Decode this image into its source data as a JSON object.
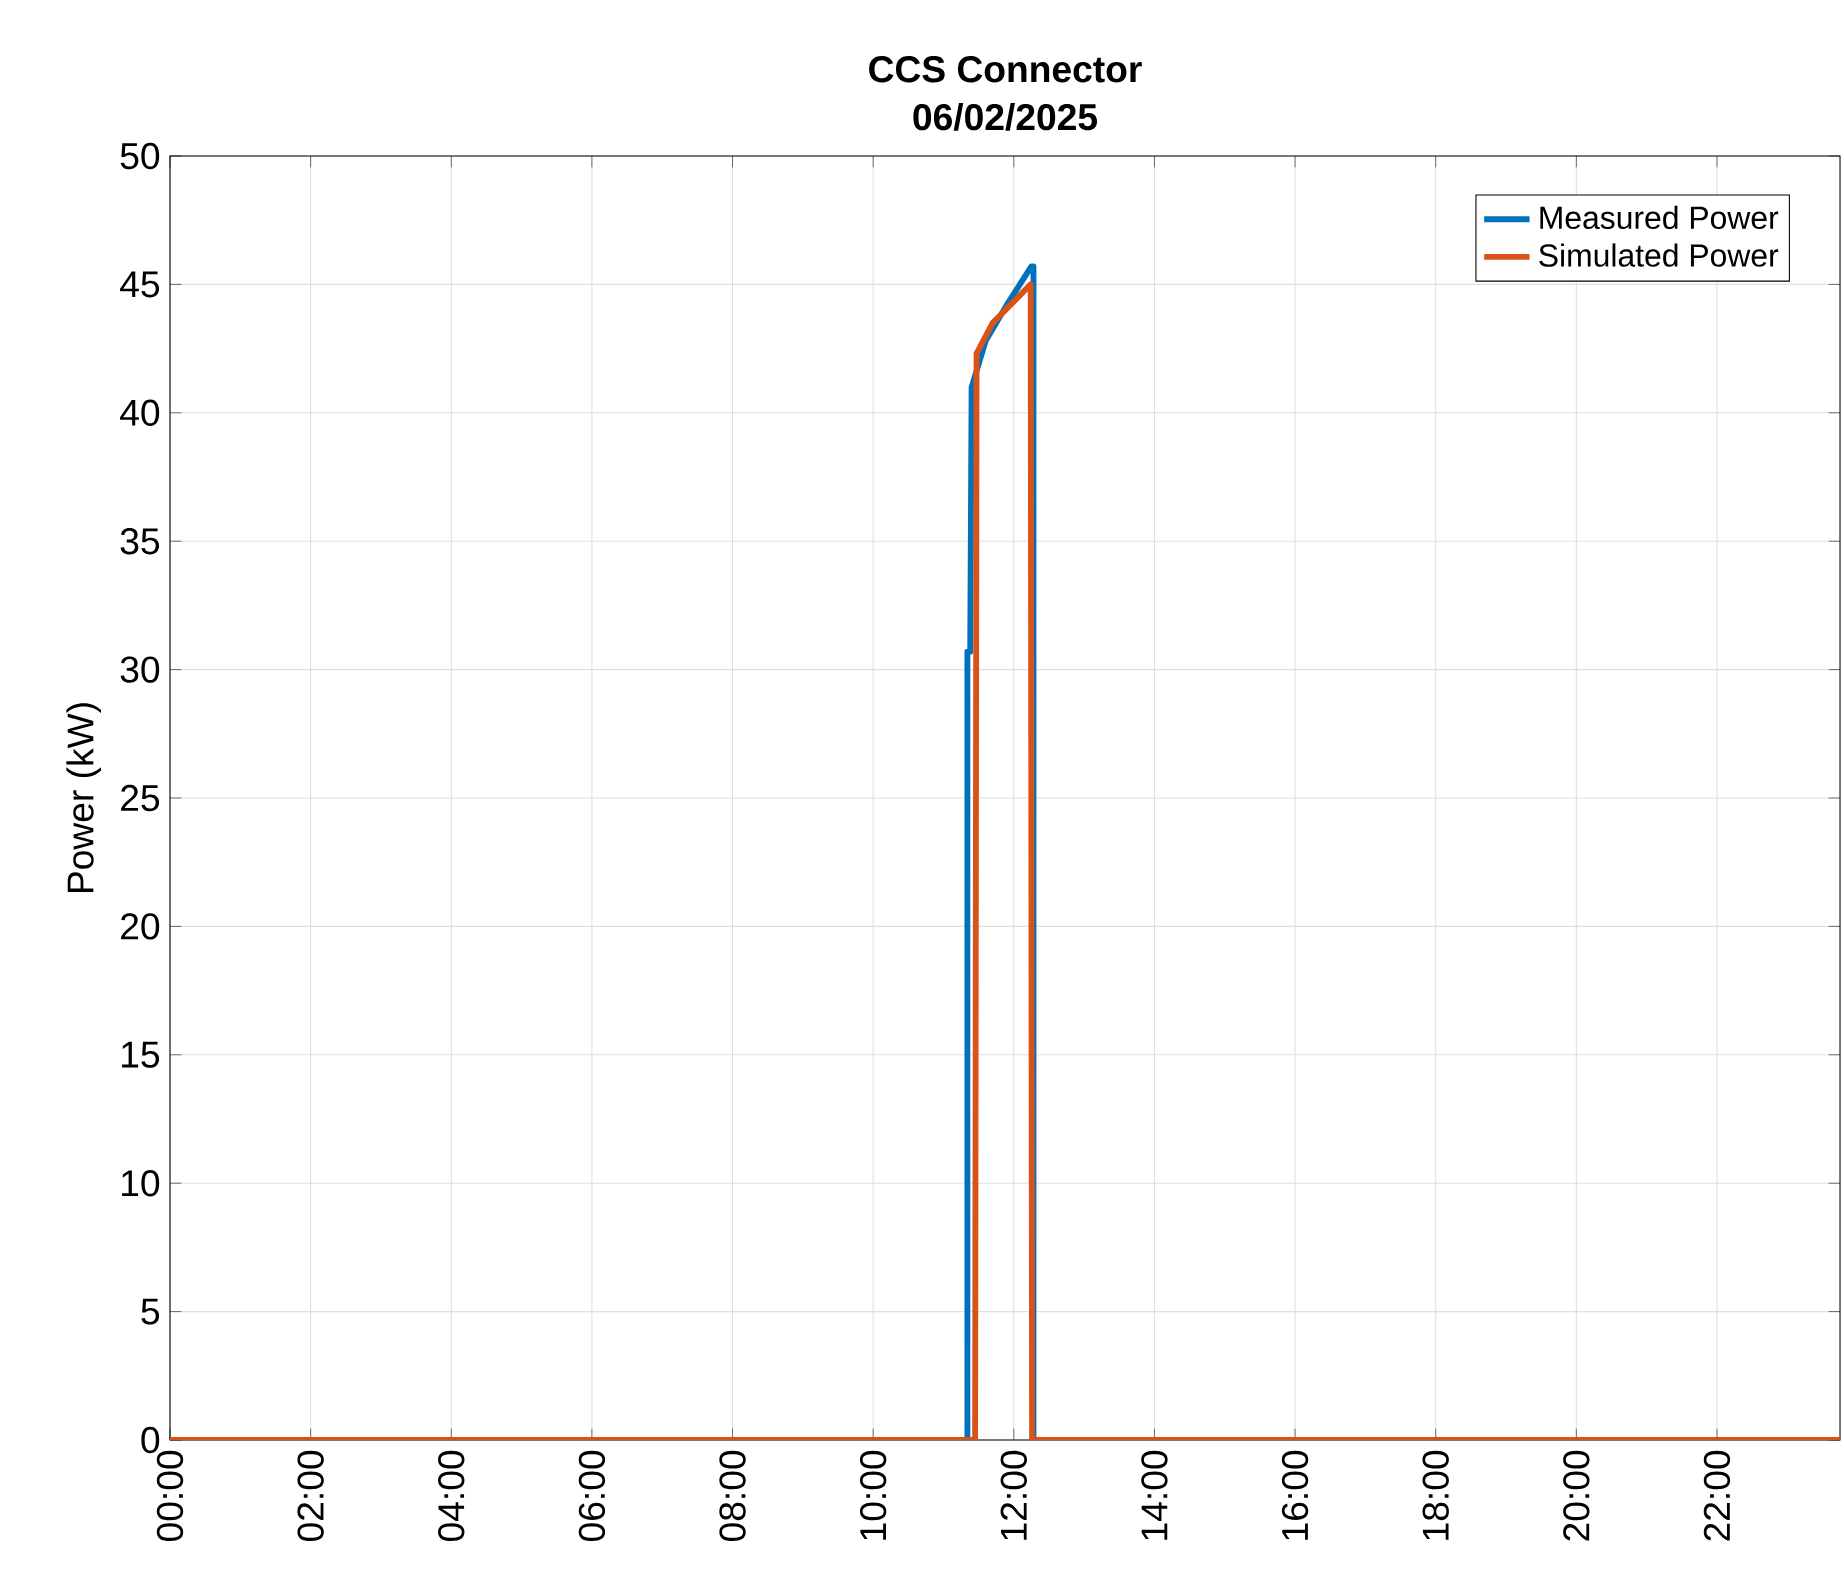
{
  "chart_data": {
    "type": "line",
    "title": "CCS Connector",
    "subtitle": "06/02/2025",
    "ylabel": "Power (kW)",
    "xlim": [
      0,
      23.75
    ],
    "ylim": [
      0,
      50
    ],
    "xticks": [
      {
        "value": 0,
        "label": "00:00"
      },
      {
        "value": 2,
        "label": "02:00"
      },
      {
        "value": 4,
        "label": "04:00"
      },
      {
        "value": 6,
        "label": "06:00"
      },
      {
        "value": 8,
        "label": "08:00"
      },
      {
        "value": 10,
        "label": "10:00"
      },
      {
        "value": 12,
        "label": "12:00"
      },
      {
        "value": 14,
        "label": "14:00"
      },
      {
        "value": 16,
        "label": "16:00"
      },
      {
        "value": 18,
        "label": "18:00"
      },
      {
        "value": 20,
        "label": "20:00"
      },
      {
        "value": 22,
        "label": "22:00"
      }
    ],
    "yticks": [
      0,
      5,
      10,
      15,
      20,
      25,
      30,
      35,
      40,
      45,
      50
    ],
    "grid": true,
    "legend": "top right",
    "series": [
      {
        "name": "Measured Power",
        "color": "#0072bd",
        "x": [
          0,
          11.34,
          11.34,
          11.38,
          11.4,
          11.6,
          11.9,
          12.25,
          12.28,
          12.28,
          23.75
        ],
        "values": [
          0,
          0,
          30.7,
          30.7,
          41,
          42.8,
          44.2,
          45.7,
          45.7,
          0,
          0
        ]
      },
      {
        "name": "Simulated Power",
        "color": "#d95319",
        "x": [
          0,
          11.45,
          11.47,
          11.47,
          11.7,
          12.24,
          12.26,
          23.75
        ],
        "values": [
          0,
          0,
          41.5,
          42.3,
          43.5,
          45,
          0,
          0
        ]
      }
    ]
  }
}
